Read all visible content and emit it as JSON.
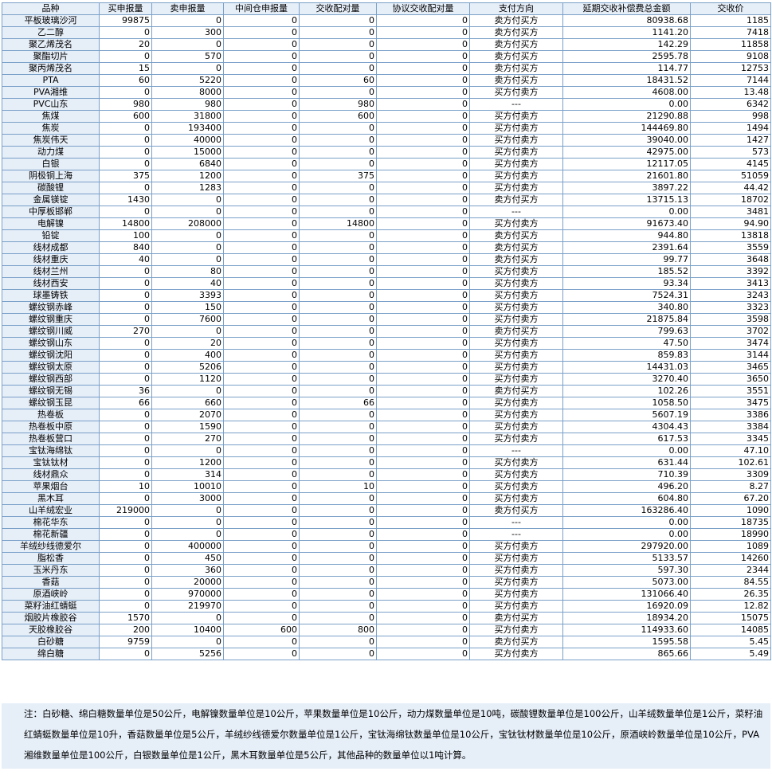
{
  "columns": [
    "品种",
    "买申报量",
    "卖申报量",
    "中间仓申报量",
    "交收配对量",
    "协议交收配对量",
    "支付方向",
    "延期交收补偿费总金额",
    "交收价"
  ],
  "rows": [
    [
      "平板玻璃沙河",
      "99875",
      "0",
      "0",
      "0",
      "0",
      "卖方付买方",
      "80938.68",
      "1185"
    ],
    [
      "乙二醇",
      "0",
      "300",
      "0",
      "0",
      "0",
      "卖方付买方",
      "1141.20",
      "7418"
    ],
    [
      "聚乙烯茂名",
      "20",
      "0",
      "0",
      "0",
      "0",
      "卖方付买方",
      "142.29",
      "11858"
    ],
    [
      "聚酯切片",
      "0",
      "570",
      "0",
      "0",
      "0",
      "卖方付买方",
      "2595.78",
      "9108"
    ],
    [
      "聚丙烯茂名",
      "15",
      "0",
      "0",
      "0",
      "0",
      "卖方付买方",
      "114.77",
      "12753"
    ],
    [
      "PTA",
      "60",
      "5220",
      "0",
      "60",
      "0",
      "卖方付买方",
      "18431.52",
      "7144"
    ],
    [
      "PVA湘维",
      "0",
      "8000",
      "0",
      "0",
      "0",
      "买方付卖方",
      "4608.00",
      "13.48"
    ],
    [
      "PVC山东",
      "980",
      "980",
      "0",
      "980",
      "0",
      "---",
      "0.00",
      "6342"
    ],
    [
      "焦煤",
      "600",
      "31800",
      "0",
      "600",
      "0",
      "买方付卖方",
      "21290.88",
      "998"
    ],
    [
      "焦炭",
      "0",
      "193400",
      "0",
      "0",
      "0",
      "买方付卖方",
      "144469.80",
      "1494"
    ],
    [
      "焦炭伟天",
      "0",
      "40000",
      "0",
      "0",
      "0",
      "买方付卖方",
      "39040.00",
      "1427"
    ],
    [
      "动力煤",
      "0",
      "15000",
      "0",
      "0",
      "0",
      "买方付卖方",
      "42975.00",
      "573"
    ],
    [
      "白银",
      "0",
      "6840",
      "0",
      "0",
      "0",
      "买方付卖方",
      "12117.05",
      "4145"
    ],
    [
      "阴极铜上海",
      "375",
      "1200",
      "0",
      "375",
      "0",
      "买方付卖方",
      "21601.80",
      "51059"
    ],
    [
      "碳酸锂",
      "0",
      "1283",
      "0",
      "0",
      "0",
      "买方付卖方",
      "3897.22",
      "44.42"
    ],
    [
      "金属镁锭",
      "1430",
      "0",
      "0",
      "0",
      "0",
      "卖方付买方",
      "13715.13",
      "18702"
    ],
    [
      "中厚板邯郸",
      "0",
      "0",
      "0",
      "0",
      "0",
      "---",
      "0.00",
      "3481"
    ],
    [
      "电解镍",
      "14800",
      "208000",
      "0",
      "14800",
      "0",
      "买方付卖方",
      "91673.40",
      "94.90"
    ],
    [
      "铅锭",
      "100",
      "0",
      "0",
      "0",
      "0",
      "卖方付买方",
      "944.80",
      "13818"
    ],
    [
      "线材成都",
      "840",
      "0",
      "0",
      "0",
      "0",
      "卖方付买方",
      "2391.64",
      "3559"
    ],
    [
      "线材重庆",
      "40",
      "0",
      "0",
      "0",
      "0",
      "卖方付买方",
      "99.77",
      "3648"
    ],
    [
      "线材兰州",
      "0",
      "80",
      "0",
      "0",
      "0",
      "买方付卖方",
      "185.52",
      "3392"
    ],
    [
      "线材西安",
      "0",
      "40",
      "0",
      "0",
      "0",
      "买方付卖方",
      "93.34",
      "3413"
    ],
    [
      "球墨铸铁",
      "0",
      "3393",
      "0",
      "0",
      "0",
      "买方付卖方",
      "7524.31",
      "3243"
    ],
    [
      "螺纹钢赤峰",
      "0",
      "150",
      "0",
      "0",
      "0",
      "买方付卖方",
      "340.80",
      "3323"
    ],
    [
      "螺纹钢重庆",
      "0",
      "7600",
      "0",
      "0",
      "0",
      "买方付卖方",
      "21875.84",
      "3598"
    ],
    [
      "螺纹钢川威",
      "270",
      "0",
      "0",
      "0",
      "0",
      "卖方付买方",
      "799.63",
      "3702"
    ],
    [
      "螺纹钢山东",
      "0",
      "20",
      "0",
      "0",
      "0",
      "买方付卖方",
      "47.50",
      "3474"
    ],
    [
      "螺纹钢沈阳",
      "0",
      "400",
      "0",
      "0",
      "0",
      "买方付卖方",
      "859.83",
      "3144"
    ],
    [
      "螺纹钢太原",
      "0",
      "5206",
      "0",
      "0",
      "0",
      "买方付卖方",
      "14431.03",
      "3465"
    ],
    [
      "螺纹钢西部",
      "0",
      "1120",
      "0",
      "0",
      "0",
      "买方付卖方",
      "3270.40",
      "3650"
    ],
    [
      "螺纹钢无锡",
      "36",
      "0",
      "0",
      "0",
      "0",
      "卖方付买方",
      "102.26",
      "3551"
    ],
    [
      "螺纹钢玉昆",
      "66",
      "660",
      "0",
      "66",
      "0",
      "买方付卖方",
      "1058.50",
      "3475"
    ],
    [
      "热卷板",
      "0",
      "2070",
      "0",
      "0",
      "0",
      "买方付卖方",
      "5607.19",
      "3386"
    ],
    [
      "热卷板中原",
      "0",
      "1590",
      "0",
      "0",
      "0",
      "买方付卖方",
      "4304.43",
      "3384"
    ],
    [
      "热卷板营口",
      "0",
      "270",
      "0",
      "0",
      "0",
      "买方付卖方",
      "617.53",
      "3345"
    ],
    [
      "宝钛海绵钛",
      "0",
      "0",
      "0",
      "0",
      "0",
      "---",
      "0.00",
      "47.10"
    ],
    [
      "宝钛钛材",
      "0",
      "1200",
      "0",
      "0",
      "0",
      "买方付卖方",
      "631.44",
      "102.61"
    ],
    [
      "线材鼎众",
      "0",
      "314",
      "0",
      "0",
      "0",
      "买方付卖方",
      "710.39",
      "3309"
    ],
    [
      "苹果烟台",
      "10",
      "10010",
      "0",
      "10",
      "0",
      "买方付卖方",
      "496.20",
      "8.27"
    ],
    [
      "黑木耳",
      "0",
      "3000",
      "0",
      "0",
      "0",
      "买方付卖方",
      "604.80",
      "67.20"
    ],
    [
      "山羊绒宏业",
      "219000",
      "0",
      "0",
      "0",
      "0",
      "卖方付买方",
      "163286.40",
      "1090"
    ],
    [
      "棉花华东",
      "0",
      "0",
      "0",
      "0",
      "0",
      "---",
      "0.00",
      "18735"
    ],
    [
      "棉花新疆",
      "0",
      "0",
      "0",
      "0",
      "0",
      "---",
      "0.00",
      "18990"
    ],
    [
      "羊绒纱线德爱尔",
      "0",
      "400000",
      "0",
      "0",
      "0",
      "买方付卖方",
      "297920.00",
      "1089"
    ],
    [
      "脂松香",
      "0",
      "450",
      "0",
      "0",
      "0",
      "买方付卖方",
      "5133.57",
      "14260"
    ],
    [
      "玉米丹东",
      "0",
      "360",
      "0",
      "0",
      "0",
      "买方付卖方",
      "597.30",
      "2344"
    ],
    [
      "香菇",
      "0",
      "20000",
      "0",
      "0",
      "0",
      "买方付卖方",
      "5073.00",
      "84.55"
    ],
    [
      "原酒峡岭",
      "0",
      "970000",
      "0",
      "0",
      "0",
      "买方付卖方",
      "131066.40",
      "26.35"
    ],
    [
      "菜籽油红蜻蜓",
      "0",
      "219970",
      "0",
      "0",
      "0",
      "买方付卖方",
      "16920.09",
      "12.82"
    ],
    [
      "烟胶片橡胶谷",
      "1570",
      "0",
      "0",
      "0",
      "0",
      "卖方付买方",
      "18934.20",
      "15075"
    ],
    [
      "天胶橡胶谷",
      "200",
      "10400",
      "600",
      "800",
      "0",
      "买方付卖方",
      "114933.60",
      "14085"
    ],
    [
      "白砂糖",
      "9759",
      "0",
      "0",
      "0",
      "0",
      "卖方付买方",
      "1595.58",
      "5.45"
    ],
    [
      "绵白糖",
      "0",
      "5256",
      "0",
      "0",
      "0",
      "买方付卖方",
      "865.66",
      "5.49"
    ]
  ],
  "note": "注：白砂糖、绵白糖数量单位是50公斤，电解镍数量单位是10公斤，苹果数量单位是10公斤，动力煤数量单位是10吨，碳酸锂数量单位是100公斤，山羊绒数量单位是1公斤，菜籽油红蜻蜓数量单位是10升，香菇数量单位是5公斤，羊绒纱线德爱尔数量单位是1公斤，宝钛海绵钛数量单位是10公斤，宝钛钛材数量单位是10公斤，原酒峡岭数量单位是10公斤，PVA湘维数量单位是100公斤，白银数量单位是1公斤，黑木耳数量单位是5公斤，其他品种的数量单位以1吨计算。"
}
